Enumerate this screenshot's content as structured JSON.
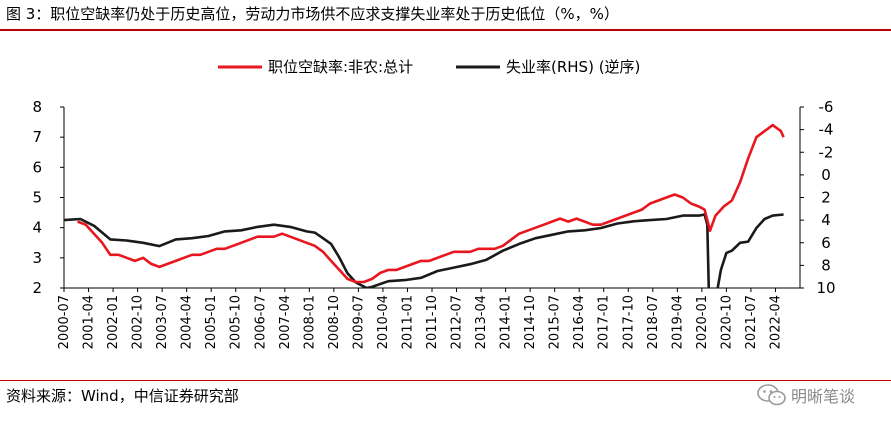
{
  "figure": {
    "title": "图 3：职位空缺率仍处于历史高位，劳动力市场供不应求支撑失业率处于历史低位（%，%）",
    "source": "资料来源：Wind，中信证券研究部",
    "watermark": "明晰笔谈",
    "accent_color": "#c00000"
  },
  "chart_data": {
    "type": "line",
    "left_axis": {
      "ylim": [
        2,
        8
      ],
      "ticks": [
        "8",
        "7",
        "6",
        "5",
        "4",
        "3",
        "2"
      ]
    },
    "right_axis": {
      "ylim": [
        -6,
        10
      ],
      "inverted": true,
      "ticks": [
        "-6",
        "-4",
        "-2",
        "0",
        "2",
        "4",
        "6",
        "8",
        "10"
      ]
    },
    "x_ticks": [
      "2000-07",
      "2001-04",
      "2002-01",
      "2002-10",
      "2003-07",
      "2004-04",
      "2005-01",
      "2005-10",
      "2006-07",
      "2007-04",
      "2008-01",
      "2008-10",
      "2009-07",
      "2010-04",
      "2011-01",
      "2011-10",
      "2012-07",
      "2013-04",
      "2014-01",
      "2014-10",
      "2015-07",
      "2016-04",
      "2017-01",
      "2017-10",
      "2018-07",
      "2019-04",
      "2020-01",
      "2020-10",
      "2021-07",
      "2022-04"
    ],
    "grid": false,
    "legend_position": "top-center",
    "series": [
      {
        "name": "职位空缺率:非农:总计",
        "axis": "left",
        "color": "#e8161e",
        "points": [
          [
            "2000-12",
            4.2
          ],
          [
            "2001-03",
            4.1
          ],
          [
            "2001-06",
            3.8
          ],
          [
            "2001-09",
            3.5
          ],
          [
            "2001-12",
            3.1
          ],
          [
            "2002-03",
            3.1
          ],
          [
            "2002-06",
            3.0
          ],
          [
            "2002-09",
            2.9
          ],
          [
            "2002-12",
            3.0
          ],
          [
            "2003-03",
            2.8
          ],
          [
            "2003-06",
            2.7
          ],
          [
            "2003-09",
            2.8
          ],
          [
            "2003-12",
            2.9
          ],
          [
            "2004-03",
            3.0
          ],
          [
            "2004-06",
            3.1
          ],
          [
            "2004-09",
            3.1
          ],
          [
            "2004-12",
            3.2
          ],
          [
            "2005-03",
            3.3
          ],
          [
            "2005-06",
            3.3
          ],
          [
            "2005-09",
            3.4
          ],
          [
            "2005-12",
            3.5
          ],
          [
            "2006-03",
            3.6
          ],
          [
            "2006-06",
            3.7
          ],
          [
            "2006-09",
            3.7
          ],
          [
            "2006-12",
            3.7
          ],
          [
            "2007-03",
            3.8
          ],
          [
            "2007-06",
            3.7
          ],
          [
            "2007-09",
            3.6
          ],
          [
            "2007-12",
            3.5
          ],
          [
            "2008-03",
            3.4
          ],
          [
            "2008-06",
            3.2
          ],
          [
            "2008-09",
            2.9
          ],
          [
            "2008-12",
            2.6
          ],
          [
            "2009-03",
            2.3
          ],
          [
            "2009-06",
            2.2
          ],
          [
            "2009-09",
            2.2
          ],
          [
            "2009-12",
            2.3
          ],
          [
            "2010-03",
            2.5
          ],
          [
            "2010-06",
            2.6
          ],
          [
            "2010-09",
            2.6
          ],
          [
            "2010-12",
            2.7
          ],
          [
            "2011-03",
            2.8
          ],
          [
            "2011-06",
            2.9
          ],
          [
            "2011-09",
            2.9
          ],
          [
            "2011-12",
            3.0
          ],
          [
            "2012-03",
            3.1
          ],
          [
            "2012-06",
            3.2
          ],
          [
            "2012-09",
            3.2
          ],
          [
            "2012-12",
            3.2
          ],
          [
            "2013-03",
            3.3
          ],
          [
            "2013-06",
            3.3
          ],
          [
            "2013-09",
            3.3
          ],
          [
            "2013-12",
            3.4
          ],
          [
            "2014-03",
            3.6
          ],
          [
            "2014-06",
            3.8
          ],
          [
            "2014-09",
            3.9
          ],
          [
            "2014-12",
            4.0
          ],
          [
            "2015-03",
            4.1
          ],
          [
            "2015-06",
            4.2
          ],
          [
            "2015-09",
            4.3
          ],
          [
            "2015-12",
            4.2
          ],
          [
            "2016-03",
            4.3
          ],
          [
            "2016-06",
            4.2
          ],
          [
            "2016-09",
            4.1
          ],
          [
            "2016-12",
            4.1
          ],
          [
            "2017-03",
            4.2
          ],
          [
            "2017-06",
            4.3
          ],
          [
            "2017-09",
            4.4
          ],
          [
            "2017-12",
            4.5
          ],
          [
            "2018-03",
            4.6
          ],
          [
            "2018-06",
            4.8
          ],
          [
            "2018-09",
            4.9
          ],
          [
            "2018-12",
            5.0
          ],
          [
            "2019-03",
            5.1
          ],
          [
            "2019-06",
            5.0
          ],
          [
            "2019-09",
            4.8
          ],
          [
            "2019-12",
            4.7
          ],
          [
            "2020-02",
            4.6
          ],
          [
            "2020-04",
            3.9
          ],
          [
            "2020-06",
            4.4
          ],
          [
            "2020-09",
            4.7
          ],
          [
            "2020-12",
            4.9
          ],
          [
            "2021-03",
            5.5
          ],
          [
            "2021-06",
            6.3
          ],
          [
            "2021-09",
            7.0
          ],
          [
            "2021-12",
            7.2
          ],
          [
            "2022-03",
            7.4
          ],
          [
            "2022-06",
            7.2
          ],
          [
            "2022-07",
            7.0
          ]
        ]
      },
      {
        "name": "失业率(RHS) (逆序)",
        "axis": "right",
        "color": "#1a1a1a",
        "points": [
          [
            "2000-07",
            4.0
          ],
          [
            "2001-01",
            3.9
          ],
          [
            "2001-06",
            4.5
          ],
          [
            "2001-12",
            5.7
          ],
          [
            "2002-06",
            5.8
          ],
          [
            "2002-12",
            6.0
          ],
          [
            "2003-06",
            6.3
          ],
          [
            "2003-12",
            5.7
          ],
          [
            "2004-06",
            5.6
          ],
          [
            "2004-12",
            5.4
          ],
          [
            "2005-06",
            5.0
          ],
          [
            "2005-12",
            4.9
          ],
          [
            "2006-06",
            4.6
          ],
          [
            "2006-12",
            4.4
          ],
          [
            "2007-06",
            4.6
          ],
          [
            "2007-12",
            5.0
          ],
          [
            "2008-03",
            5.1
          ],
          [
            "2008-06",
            5.6
          ],
          [
            "2008-09",
            6.1
          ],
          [
            "2008-12",
            7.3
          ],
          [
            "2009-03",
            8.7
          ],
          [
            "2009-06",
            9.5
          ],
          [
            "2009-10",
            10.0
          ],
          [
            "2009-12",
            9.9
          ],
          [
            "2010-06",
            9.4
          ],
          [
            "2010-12",
            9.3
          ],
          [
            "2011-06",
            9.1
          ],
          [
            "2011-12",
            8.5
          ],
          [
            "2012-06",
            8.2
          ],
          [
            "2012-12",
            7.9
          ],
          [
            "2013-06",
            7.5
          ],
          [
            "2013-12",
            6.7
          ],
          [
            "2014-06",
            6.1
          ],
          [
            "2014-12",
            5.6
          ],
          [
            "2015-06",
            5.3
          ],
          [
            "2015-12",
            5.0
          ],
          [
            "2016-06",
            4.9
          ],
          [
            "2016-12",
            4.7
          ],
          [
            "2017-06",
            4.3
          ],
          [
            "2017-12",
            4.1
          ],
          [
            "2018-06",
            4.0
          ],
          [
            "2018-12",
            3.9
          ],
          [
            "2019-06",
            3.6
          ],
          [
            "2019-12",
            3.6
          ],
          [
            "2020-02",
            3.5
          ],
          [
            "2020-03",
            4.4
          ],
          [
            "2020-04",
            14.7
          ],
          [
            "2020-06",
            11.1
          ],
          [
            "2020-08",
            8.4
          ],
          [
            "2020-10",
            6.9
          ],
          [
            "2020-12",
            6.7
          ],
          [
            "2021-03",
            6.0
          ],
          [
            "2021-06",
            5.9
          ],
          [
            "2021-09",
            4.7
          ],
          [
            "2021-12",
            3.9
          ],
          [
            "2022-03",
            3.6
          ],
          [
            "2022-07",
            3.5
          ]
        ]
      }
    ]
  }
}
